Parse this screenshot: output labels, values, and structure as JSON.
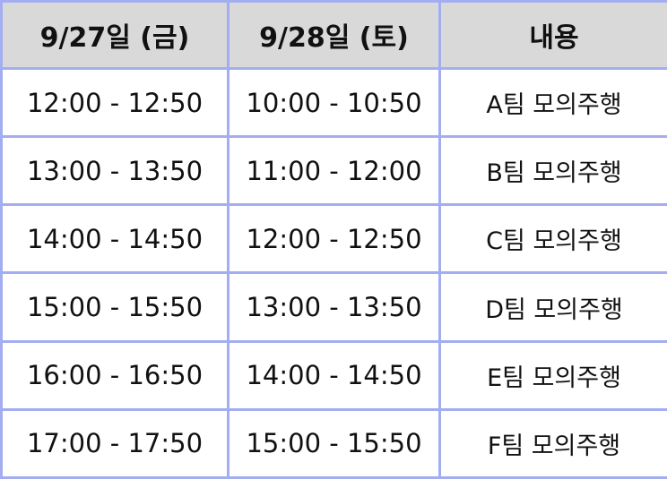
{
  "table": {
    "headers": [
      "9/27일 (금)",
      "9/28일 (토)",
      "내용"
    ],
    "rows": [
      [
        "12:00 - 12:50",
        "10:00 - 10:50",
        "A팀 모의주행"
      ],
      [
        "13:00 - 13:50",
        "11:00 - 12:00",
        "B팀 모의주행"
      ],
      [
        "14:00 - 14:50",
        "12:00 - 12:50",
        "C팀 모의주행"
      ],
      [
        "15:00 - 15:50",
        "13:00 - 13:50",
        "D팀 모의주행"
      ],
      [
        "16:00 - 16:50",
        "14:00 - 14:50",
        "E팀 모의주행"
      ],
      [
        "17:00 - 17:50",
        "15:00 - 15:50",
        "F팀 모의주행"
      ]
    ]
  },
  "colors": {
    "border": "#a3aef0",
    "header_background": "#d9d9d9",
    "cell_background": "#ffffff",
    "text": "#111111"
  }
}
